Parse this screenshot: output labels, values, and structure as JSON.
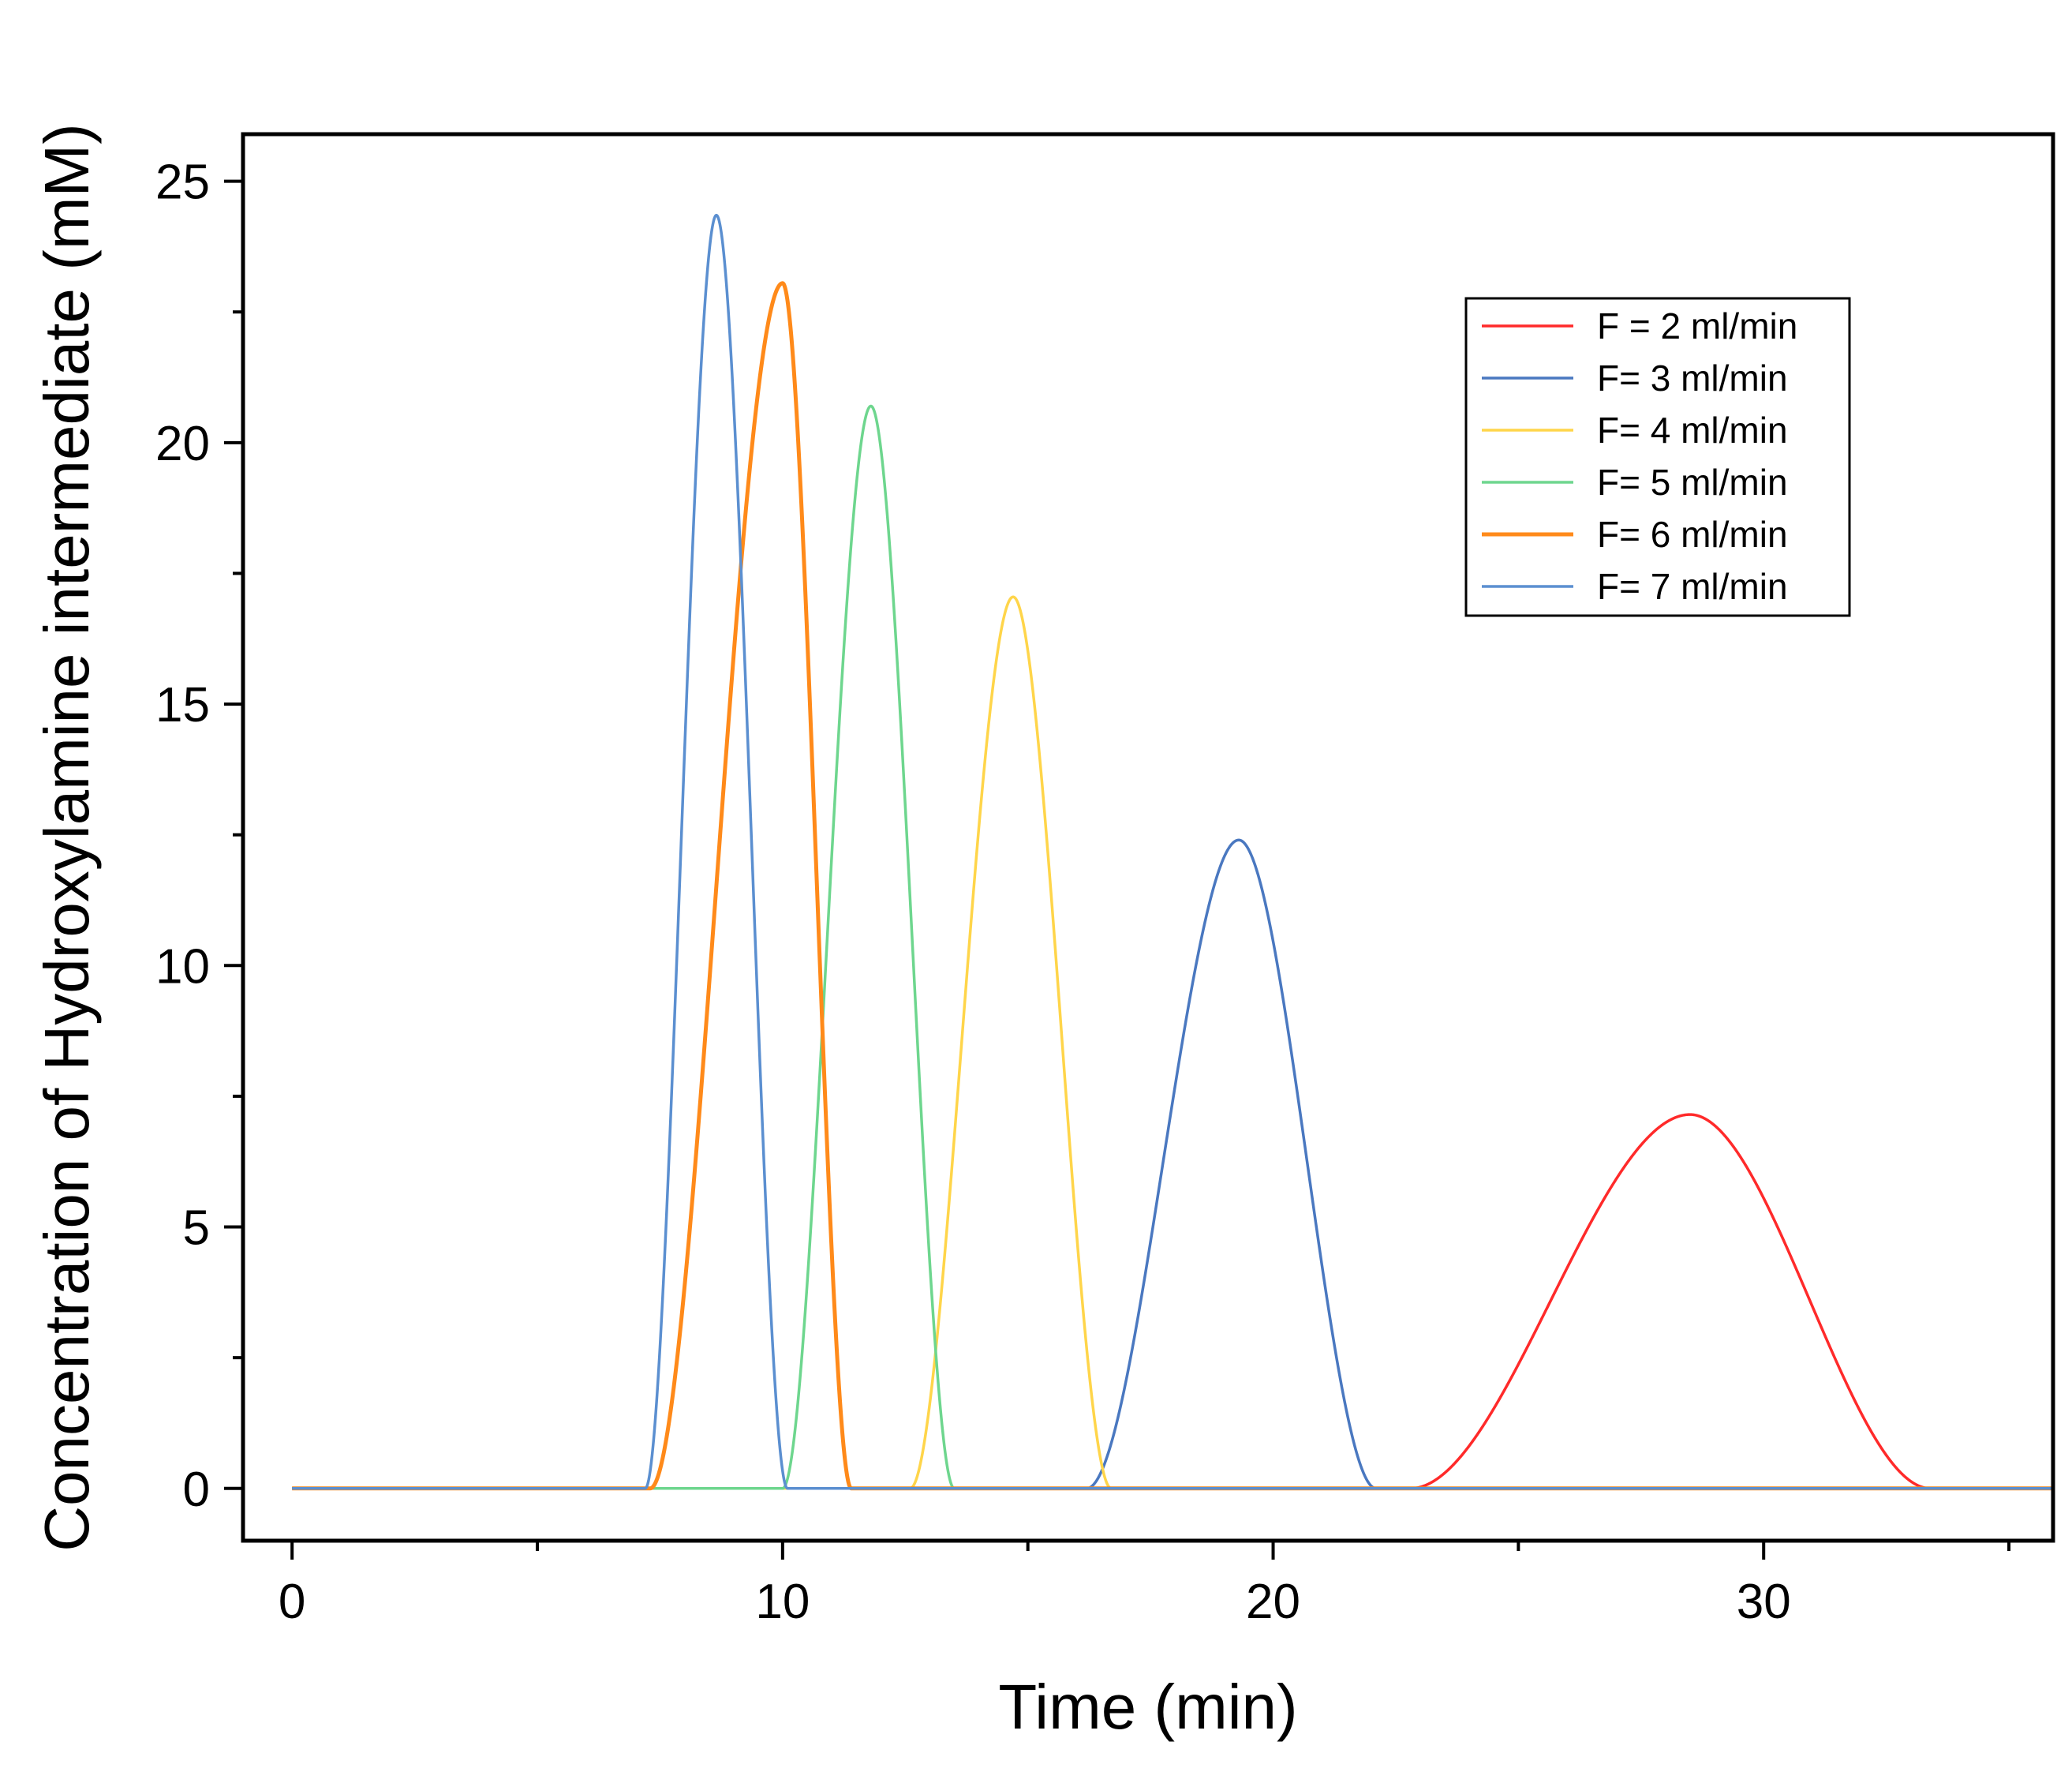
{
  "chart_data": {
    "type": "line",
    "title": "",
    "xlabel": "Time (min)",
    "ylabel": "Concentration of Hydroxylamine intermediate (mM)",
    "xlim": [
      -1,
      35.9
    ],
    "ylim": [
      -1,
      25.9
    ],
    "x_ticks": [
      0,
      10,
      20,
      30
    ],
    "x_minor_ticks": [
      5,
      15,
      25,
      35
    ],
    "y_ticks": [
      0,
      5,
      10,
      15,
      20,
      25
    ],
    "y_minor_ticks": [
      2.5,
      7.5,
      12.5,
      17.5,
      22.5
    ],
    "x_tick_labels": [
      "0",
      "10",
      "20",
      "30"
    ],
    "y_tick_labels": [
      "0",
      "5",
      "10",
      "15",
      "20",
      "25"
    ],
    "x_range": [
      0,
      35.9
    ],
    "legend_position": "top-right",
    "series": [
      {
        "name": "F = 2 ml/min",
        "color": "#ff2a2a",
        "peak_time": 28.5,
        "peak_value": 7.15,
        "start": 22.8,
        "end": 33.4
      },
      {
        "name": "F= 3 ml/min",
        "color": "#4a78c0",
        "peak_time": 19.3,
        "peak_value": 12.4,
        "start": 16.2,
        "end": 22.1
      },
      {
        "name": "F= 4 ml/min",
        "color": "#ffd54a",
        "peak_time": 14.7,
        "peak_value": 17.05,
        "start": 12.6,
        "end": 16.7
      },
      {
        "name": "F= 5 ml/min",
        "color": "#6ed68e",
        "peak_time": 11.8,
        "peak_value": 20.7,
        "start": 10.0,
        "end": 13.5
      },
      {
        "name": "F= 6 ml/min",
        "color": "#ff8a1a",
        "peak_time": 10.0,
        "peak_value": 23.05,
        "start": 7.3,
        "end": 11.4
      },
      {
        "name": "F= 7 ml/min",
        "color": "#5b8fd0",
        "peak_time": 8.65,
        "peak_value": 24.35,
        "start": 7.2,
        "end": 10.1
      }
    ]
  }
}
